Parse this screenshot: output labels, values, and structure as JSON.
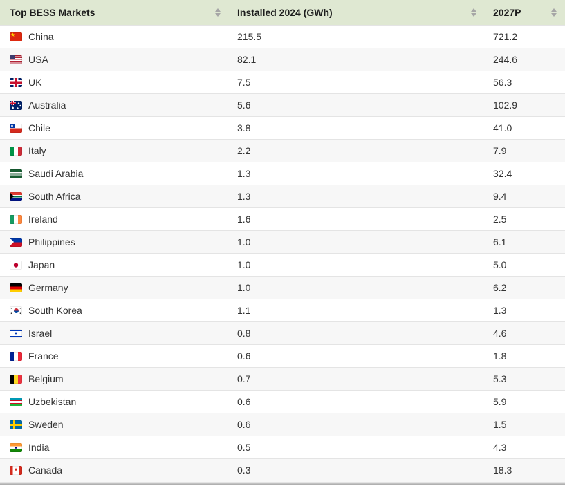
{
  "table": {
    "columns": [
      {
        "label": "Top BESS Markets",
        "sort_icon": "sort-arrows"
      },
      {
        "label": "Installed 2024 (GWh)",
        "sort_icon": "sort-arrows"
      },
      {
        "label": "2027P",
        "sort_icon": "sort-arrows"
      }
    ],
    "rows": [
      {
        "flag": "cn",
        "country": "China",
        "installed_2024": "215.5",
        "p2027": "721.2"
      },
      {
        "flag": "us",
        "country": "USA",
        "installed_2024": "82.1",
        "p2027": "244.6"
      },
      {
        "flag": "gb",
        "country": "UK",
        "installed_2024": "7.5",
        "p2027": "56.3"
      },
      {
        "flag": "au",
        "country": "Australia",
        "installed_2024": "5.6",
        "p2027": "102.9"
      },
      {
        "flag": "cl",
        "country": "Chile",
        "installed_2024": "3.8",
        "p2027": "41.0"
      },
      {
        "flag": "it",
        "country": "Italy",
        "installed_2024": "2.2",
        "p2027": "7.9"
      },
      {
        "flag": "sa",
        "country": "Saudi Arabia",
        "installed_2024": "1.3",
        "p2027": "32.4"
      },
      {
        "flag": "za",
        "country": "South Africa",
        "installed_2024": "1.3",
        "p2027": "9.4"
      },
      {
        "flag": "ie",
        "country": "Ireland",
        "installed_2024": "1.6",
        "p2027": "2.5"
      },
      {
        "flag": "ph",
        "country": "Philippines",
        "installed_2024": "1.0",
        "p2027": "6.1"
      },
      {
        "flag": "jp",
        "country": "Japan",
        "installed_2024": "1.0",
        "p2027": "5.0"
      },
      {
        "flag": "de",
        "country": "Germany",
        "installed_2024": "1.0",
        "p2027": "6.2"
      },
      {
        "flag": "kr",
        "country": "South Korea",
        "installed_2024": "1.1",
        "p2027": "1.3"
      },
      {
        "flag": "il",
        "country": "Israel",
        "installed_2024": "0.8",
        "p2027": "4.6"
      },
      {
        "flag": "fr",
        "country": "France",
        "installed_2024": "0.6",
        "p2027": "1.8"
      },
      {
        "flag": "be",
        "country": "Belgium",
        "installed_2024": "0.7",
        "p2027": "5.3"
      },
      {
        "flag": "uz",
        "country": "Uzbekistan",
        "installed_2024": "0.6",
        "p2027": "5.9"
      },
      {
        "flag": "se",
        "country": "Sweden",
        "installed_2024": "0.6",
        "p2027": "1.5"
      },
      {
        "flag": "in",
        "country": "India",
        "installed_2024": "0.5",
        "p2027": "4.3"
      },
      {
        "flag": "ca",
        "country": "Canada",
        "installed_2024": "0.3",
        "p2027": "18.3"
      }
    ]
  },
  "colors": {
    "header_bg": "#dfe8d2",
    "row_alt_bg": "#f7f7f7",
    "row_border": "#e4e4e4",
    "sort_arrow": "#a6a6a6",
    "text": "#333333"
  },
  "chart_data": {
    "type": "table",
    "title": "Top BESS Markets",
    "categories": [
      "China",
      "USA",
      "UK",
      "Australia",
      "Chile",
      "Italy",
      "Saudi Arabia",
      "South Africa",
      "Ireland",
      "Philippines",
      "Japan",
      "Germany",
      "South Korea",
      "Israel",
      "France",
      "Belgium",
      "Uzbekistan",
      "Sweden",
      "India",
      "Canada"
    ],
    "series": [
      {
        "name": "Installed 2024 (GWh)",
        "values": [
          215.5,
          82.1,
          7.5,
          5.6,
          3.8,
          2.2,
          1.3,
          1.3,
          1.6,
          1.0,
          1.0,
          1.0,
          1.1,
          0.8,
          0.6,
          0.7,
          0.6,
          0.6,
          0.5,
          0.3
        ]
      },
      {
        "name": "2027P",
        "values": [
          721.2,
          244.6,
          56.3,
          102.9,
          41.0,
          7.9,
          32.4,
          9.4,
          2.5,
          6.1,
          5.0,
          6.2,
          1.3,
          4.6,
          1.8,
          5.3,
          5.9,
          1.5,
          4.3,
          18.3
        ]
      }
    ]
  }
}
